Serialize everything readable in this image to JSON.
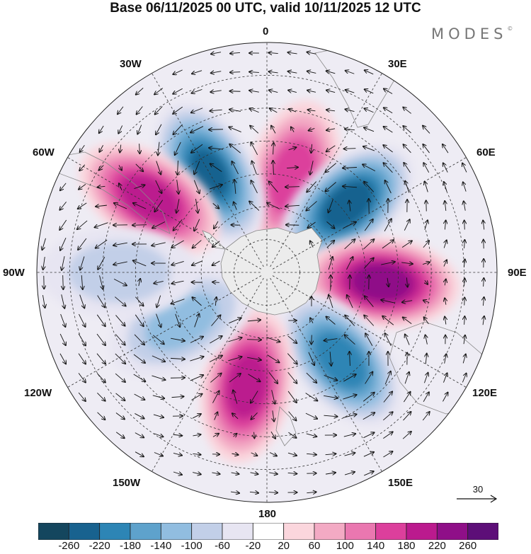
{
  "header": {
    "title": "Base 06/11/2025 00 UTC, valid 10/11/2025 12 UTC",
    "logo": "MODES",
    "logo_mark": "©"
  },
  "map": {
    "projection": "south-polar-stereographic",
    "longitude_labels": {
      "lon_0": "0",
      "lon_30e": "30E",
      "lon_60e": "60E",
      "lon_90e": "90E",
      "lon_120e": "120E",
      "lon_150e": "150E",
      "lon_180": "180",
      "lon_150w": "150W",
      "lon_120w": "120W",
      "lon_90w": "90W",
      "lon_60w": "60W",
      "lon_30w": "30W"
    },
    "anomaly_centers": [
      {
        "lon": 15,
        "lat": -60,
        "value": 180,
        "sign": "positive"
      },
      {
        "lon": -30,
        "lat": -55,
        "value": -240,
        "sign": "negative"
      },
      {
        "lon": -58,
        "lat": -48,
        "value": 220,
        "sign": "positive"
      },
      {
        "lon": 50,
        "lat": -58,
        "value": -260,
        "sign": "negative"
      },
      {
        "lon": 95,
        "lat": -55,
        "value": 260,
        "sign": "positive"
      },
      {
        "lon": 140,
        "lat": -55,
        "value": -220,
        "sign": "negative"
      },
      {
        "lon": -170,
        "lat": -55,
        "value": 220,
        "sign": "positive"
      },
      {
        "lon": -120,
        "lat": -60,
        "value": -120,
        "sign": "negative"
      },
      {
        "lon": -90,
        "lat": -45,
        "value": -80,
        "sign": "negative"
      }
    ]
  },
  "reference_vector": {
    "value": "30"
  },
  "colorbar": {
    "levels": [
      "-260",
      "-220",
      "-180",
      "-140",
      "-100",
      "-60",
      "-20",
      "20",
      "60",
      "100",
      "140",
      "180",
      "220",
      "260"
    ],
    "colors": [
      "#14465e",
      "#18628f",
      "#2d85b5",
      "#5ea2cc",
      "#91bde0",
      "#c2cfe8",
      "#e7e5f2",
      "#ffffff",
      "#fbd6dd",
      "#f3aac4",
      "#ea77b0",
      "#dc3f9c",
      "#bb1a8e",
      "#8f0f88",
      "#5d0e78"
    ]
  }
}
